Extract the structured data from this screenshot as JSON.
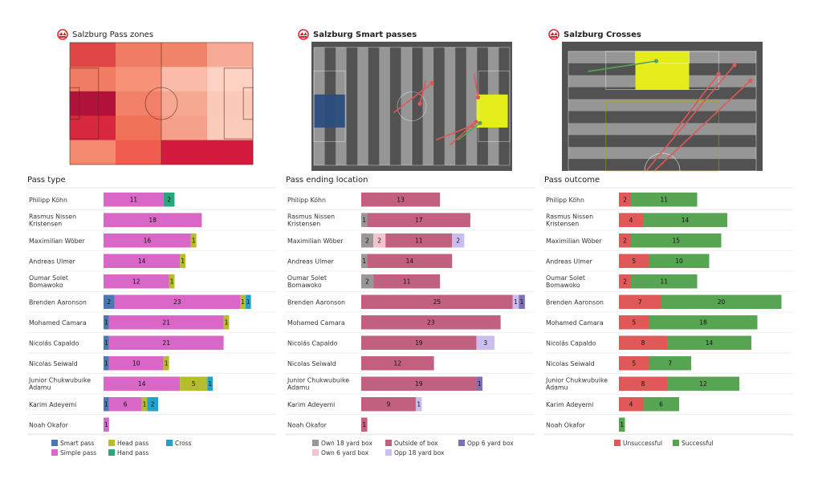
{
  "panels": {
    "zones": {
      "title": "Salzburg Pass zones"
    },
    "smart": {
      "title": "Salzburg Smart passes"
    },
    "crosses": {
      "title": "Salzburg Crosses"
    }
  },
  "colors": {
    "logo_red": "#d8232a",
    "pitch_dark": "#525252",
    "stripe_light": "#969696",
    "smart_pass": "#4a78b5",
    "simple_pass": "#d867c7",
    "head_pass": "#b5be2a",
    "hand_pass": "#2ca47d",
    "cross": "#23a2c9",
    "own_18_yard_box": "#9b9797",
    "outside_of_box": "#c2607f",
    "opp_6_yard_box": "#7e70b2",
    "own_6_yard_box": "#f5c3cf",
    "opp_18_yard_box": "#cbbdf0",
    "unsuccessful": "#e05858",
    "successful": "#57a553"
  },
  "heatmap": {
    "levels": [
      [
        "#e04545",
        "#f07d63",
        "#f08468",
        "#f7aa95"
      ],
      [
        "#f07d63",
        "#f59277",
        "#fbbba9",
        "#fdd2c2"
      ],
      [
        "#b0123c",
        "#f28068",
        "#f7a891",
        "#fbc9b8"
      ],
      [
        "#d6283e",
        "#f07259",
        "#f5a088",
        "#fbcbba"
      ],
      [
        "#f38a70",
        "#f05c4e",
        "#d41b3d",
        "#d41b3d"
      ]
    ]
  },
  "smart_passes": [
    [
      0.41,
      0.55,
      0.6,
      0.32
    ],
    [
      0.57,
      0.3,
      0.54,
      0.48
    ],
    [
      0.62,
      0.76,
      0.8,
      0.65
    ],
    [
      0.69,
      0.8,
      0.82,
      0.62
    ],
    [
      0.81,
      0.25,
      0.83,
      0.43
    ]
  ],
  "smart_passes_green": [
    [
      0.73,
      0.76,
      0.84,
      0.63
    ]
  ],
  "crosses": [
    [
      0.42,
      1.0,
      0.86,
      0.18
    ],
    [
      0.46,
      1.0,
      0.94,
      0.3
    ],
    [
      0.55,
      0.72,
      0.78,
      0.25
    ]
  ],
  "crosses_green": [
    [
      0.13,
      0.23,
      0.47,
      0.15
    ]
  ],
  "chart_data": [
    {
      "type": "bar",
      "stacked": true,
      "orientation": "horizontal",
      "title": "Pass type",
      "categories": [
        "Philipp Köhn",
        "Rasmus Nissen Kristensen",
        "Maximilian Wöber",
        "Andreas Ulmer",
        "Oumar Solet Bomawoko",
        "Brenden  Aaronson",
        "Mohamed Camara",
        "Nicolás Capaldo",
        "Nicolas Seiwald",
        "Junior Chukwubuike Adamu",
        "Karim Adeyemi",
        "Noah Okafor"
      ],
      "category_lines": [
        [
          "Philipp Köhn"
        ],
        [
          "Rasmus Nissen",
          "Kristensen"
        ],
        [
          "Maximilian Wöber"
        ],
        [
          "Andreas Ulmer"
        ],
        [
          "Oumar Solet",
          "Bomawoko"
        ],
        [
          "Brenden  Aaronson"
        ],
        [
          "Mohamed Camara"
        ],
        [
          "Nicolás Capaldo"
        ],
        [
          "Nicolas Seiwald"
        ],
        [
          "Junior Chukwubuike",
          "Adamu"
        ],
        [
          "Karim Adeyemi"
        ],
        [
          "Noah Okafor"
        ]
      ],
      "series": [
        {
          "name": "Smart pass",
          "color": "#4a78b5",
          "values": [
            0,
            0,
            0,
            0,
            0,
            2,
            1,
            1,
            1,
            0,
            1,
            0
          ]
        },
        {
          "name": "Simple pass",
          "color": "#d867c7",
          "values": [
            11,
            18,
            16,
            14,
            12,
            23,
            21,
            21,
            10,
            14,
            6,
            1
          ]
        },
        {
          "name": "Head pass",
          "color": "#b5be2a",
          "values": [
            0,
            0,
            1,
            1,
            1,
            1,
            1,
            0,
            1,
            5,
            1,
            0
          ]
        },
        {
          "name": "Hand pass",
          "color": "#2ca47d",
          "values": [
            2,
            0,
            0,
            0,
            0,
            0,
            0,
            0,
            0,
            0,
            0,
            0
          ]
        },
        {
          "name": "Cross",
          "color": "#23a2c9",
          "values": [
            0,
            0,
            0,
            0,
            0,
            1,
            0,
            0,
            0,
            1,
            2,
            0
          ]
        }
      ],
      "legend_rows": [
        [
          "Smart pass",
          "Head pass",
          "Cross"
        ],
        [
          "Simple pass",
          "Hand pass"
        ]
      ],
      "legend_position": "bottom"
    },
    {
      "type": "bar",
      "stacked": true,
      "orientation": "horizontal",
      "title": "Pass ending location",
      "categories": [
        "Philipp Köhn",
        "Rasmus Nissen Kristensen",
        "Maximilian Wöber",
        "Andreas Ulmer",
        "Oumar Solet Bomawoko",
        "Brenden  Aaronson",
        "Mohamed Camara",
        "Nicolás Capaldo",
        "Nicolas Seiwald",
        "Junior Chukwubuike Adamu",
        "Karim Adeyemi",
        "Noah Okafor"
      ],
      "category_lines": [
        [
          "Philipp Köhn"
        ],
        [
          "Rasmus Nissen",
          "Kristensen"
        ],
        [
          "Maximilian Wöber"
        ],
        [
          "Andreas Ulmer"
        ],
        [
          "Oumar Solet",
          "Bomawoko"
        ],
        [
          "Brenden  Aaronson"
        ],
        [
          "Mohamed Camara"
        ],
        [
          "Nicolás Capaldo"
        ],
        [
          "Nicolas Seiwald"
        ],
        [
          "Junior Chukwubuike",
          "Adamu"
        ],
        [
          "Karim Adeyemi"
        ],
        [
          "Noah Okafor"
        ]
      ],
      "series": [
        {
          "name": "Own 18 yard box",
          "color": "#9b9797",
          "values": [
            0,
            1,
            2,
            1,
            2,
            0,
            0,
            0,
            0,
            0,
            0,
            0
          ]
        },
        {
          "name": "Own 6 yard box",
          "color": "#f5c3cf",
          "values": [
            0,
            0,
            2,
            0,
            0,
            0,
            0,
            0,
            0,
            0,
            0,
            0
          ]
        },
        {
          "name": "Outside of box",
          "color": "#c2607f",
          "values": [
            13,
            17,
            11,
            14,
            11,
            25,
            23,
            19,
            12,
            19,
            9,
            1
          ]
        },
        {
          "name": "Opp 18 yard box",
          "color": "#cbbdf0",
          "values": [
            0,
            0,
            2,
            0,
            0,
            1,
            0,
            3,
            0,
            0,
            1,
            0
          ]
        },
        {
          "name": "Opp 6 yard box",
          "color": "#7e70b2",
          "values": [
            0,
            0,
            0,
            0,
            0,
            1,
            0,
            0,
            0,
            1,
            0,
            0
          ]
        }
      ],
      "legend_rows": [
        [
          "Own 18 yard box",
          "Outside of box",
          "Opp 6 yard box"
        ],
        [
          "Own 6 yard box",
          "Opp 18 yard box"
        ]
      ],
      "legend_position": "bottom"
    },
    {
      "type": "bar",
      "stacked": true,
      "orientation": "horizontal",
      "title": "Pass outcome",
      "categories": [
        "Philipp Köhn",
        "Rasmus Nissen Kristensen",
        "Maximilian Wöber",
        "Andreas Ulmer",
        "Oumar Solet Bomawoko",
        "Brenden  Aaronson",
        "Mohamed Camara",
        "Nicolás Capaldo",
        "Nicolas Seiwald",
        "Junior Chukwubuike Adamu",
        "Karim Adeyemi",
        "Noah Okafor"
      ],
      "category_lines": [
        [
          "Philipp Köhn"
        ],
        [
          "Rasmus Nissen",
          "Kristensen"
        ],
        [
          "Maximilian Wöber"
        ],
        [
          "Andreas Ulmer"
        ],
        [
          "Oumar Solet",
          "Bomawoko"
        ],
        [
          "Brenden  Aaronson"
        ],
        [
          "Mohamed Camara"
        ],
        [
          "Nicolás Capaldo"
        ],
        [
          "Nicolas Seiwald"
        ],
        [
          "Junior Chukwubuike",
          "Adamu"
        ],
        [
          "Karim Adeyemi"
        ],
        [
          "Noah Okafor"
        ]
      ],
      "series": [
        {
          "name": "Unsuccessful",
          "color": "#e05858",
          "values": [
            2,
            4,
            2,
            5,
            2,
            7,
            5,
            8,
            5,
            8,
            4,
            0
          ]
        },
        {
          "name": "Successful",
          "color": "#57a553",
          "values": [
            11,
            14,
            15,
            10,
            11,
            20,
            18,
            14,
            7,
            12,
            6,
            1
          ]
        }
      ],
      "legend_rows": [
        [
          "Unsuccessful",
          "Successful"
        ]
      ],
      "legend_position": "bottom"
    }
  ]
}
